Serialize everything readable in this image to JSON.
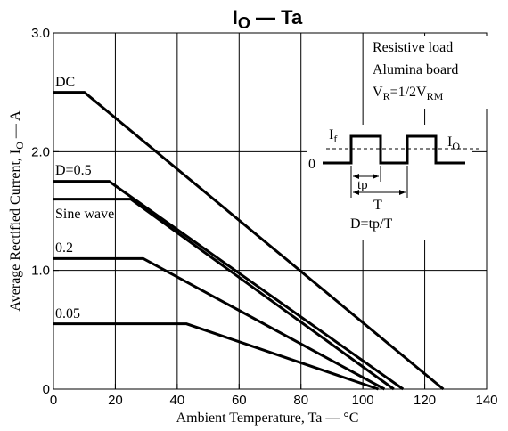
{
  "chart_data": {
    "type": "line",
    "title": {
      "main": "I",
      "sub": "O",
      "rest": " — Ta"
    },
    "xlabel": "Ambient Temperature, Ta  —  °C",
    "ylabel": {
      "main": "Average Rectified Current, I",
      "sub": "O",
      "rest": "  —  A"
    },
    "xlim": [
      0,
      140
    ],
    "ylim": [
      0,
      3.0
    ],
    "xticks": [
      0,
      20,
      40,
      60,
      80,
      100,
      120,
      140
    ],
    "xtick_labels": [
      "0",
      "20",
      "40",
      "60",
      "80",
      "100",
      "120",
      "140"
    ],
    "yticks": [
      0,
      1.0,
      2.0,
      3.0
    ],
    "ytick_labels": [
      "0",
      "1.0",
      "2.0",
      "3.0"
    ],
    "grid": true,
    "series": [
      {
        "name": "DC",
        "x": [
          0,
          10,
          126
        ],
        "y": [
          2.5,
          2.5,
          0
        ]
      },
      {
        "name": "D=0.5",
        "x": [
          0,
          18,
          113
        ],
        "y": [
          1.75,
          1.75,
          0
        ]
      },
      {
        "name": "Sine wave",
        "x": [
          0,
          25,
          110
        ],
        "y": [
          1.6,
          1.6,
          0
        ]
      },
      {
        "name": "0.2",
        "x": [
          0,
          29,
          107
        ],
        "y": [
          1.1,
          1.1,
          0
        ]
      },
      {
        "name": "0.05",
        "x": [
          0,
          43,
          105
        ],
        "y": [
          0.55,
          0.55,
          0
        ]
      }
    ],
    "annotations": {
      "conditions": [
        "Resistive load",
        "Alumina board"
      ],
      "vr": {
        "a": "V",
        "a_sub": "R",
        "b": "=1/2V",
        "b_sub": "RM"
      },
      "waveform": {
        "if_main": "I",
        "if_sub": "f",
        "io_main": "I",
        "io_sub": "O",
        "zero": "0",
        "tp": "tp",
        "T": "T",
        "D": "D=tp/T"
      }
    }
  }
}
